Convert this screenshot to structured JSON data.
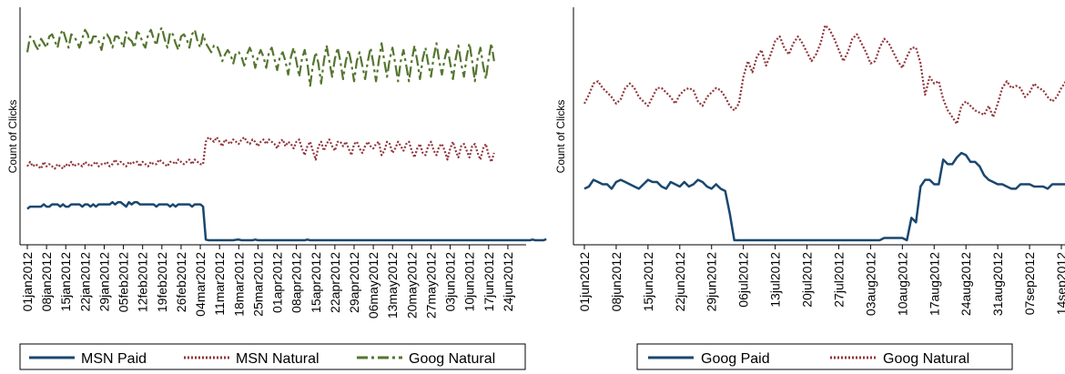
{
  "chart_data": [
    {
      "type": "line",
      "title": "",
      "xlabel": "",
      "ylabel": "Count of Clicks",
      "grid": false,
      "legend": "bottom",
      "x_ticks": [
        "01jan2012",
        "08jan2012",
        "15jan2012",
        "22jan2012",
        "29jan2012",
        "05feb2012",
        "12feb2012",
        "19feb2012",
        "26feb2012",
        "04mar2012",
        "11mar2012",
        "18mar2012",
        "25mar2012",
        "01apr2012",
        "08apr2012",
        "15apr2012",
        "22apr2012",
        "29apr2012",
        "06may2012",
        "13may2012",
        "20may2012",
        "27may2012",
        "03jun2012",
        "10jun2012",
        "17jun2012",
        "24jun2012"
      ],
      "x_start": "01jan2012",
      "x_end": "28jun2012",
      "ylim": [
        0,
        100
      ],
      "series": [
        {
          "name": "MSN Paid",
          "color": "#1a476f",
          "style": "solid",
          "values": [
            14,
            15,
            15,
            15,
            15,
            15,
            16,
            15,
            15,
            16,
            16,
            16,
            15,
            16,
            15,
            15,
            16,
            16,
            16,
            16,
            15,
            16,
            16,
            15,
            16,
            15,
            16,
            16,
            16,
            16,
            16,
            17,
            16,
            17,
            17,
            16,
            15,
            17,
            16,
            17,
            17,
            16,
            16,
            16,
            16,
            16,
            16,
            15,
            16,
            16,
            16,
            16,
            15,
            16,
            15,
            16,
            16,
            16,
            16,
            16,
            15,
            16,
            16,
            16,
            15,
            0.3,
            0,
            0,
            0,
            0,
            0,
            0,
            0,
            0,
            0,
            0,
            0.2,
            0.3,
            0,
            0,
            0,
            0,
            0,
            0.3,
            0,
            0,
            0,
            0,
            0,
            0,
            0,
            0,
            0,
            0,
            0,
            0,
            0,
            0,
            0,
            0,
            0,
            0,
            0.3,
            0,
            0,
            0,
            0,
            0,
            0,
            0,
            0,
            0,
            0,
            0,
            0,
            0,
            0,
            0,
            0,
            0,
            0,
            0,
            0,
            0,
            0,
            0,
            0,
            0,
            0,
            0,
            0,
            0,
            0,
            0,
            0,
            0,
            0,
            0,
            0,
            0,
            0,
            0,
            0,
            0,
            0,
            0,
            0,
            0,
            0,
            0,
            0,
            0,
            0,
            0,
            0,
            0,
            0,
            0,
            0,
            0,
            0,
            0,
            0,
            0,
            0,
            0,
            0,
            0,
            0,
            0,
            0,
            0,
            0,
            0,
            0,
            0,
            0,
            0,
            0,
            0,
            0,
            0,
            0,
            0,
            0.3,
            0,
            0,
            0,
            0,
            0.5
          ]
        },
        {
          "name": "MSN Natural",
          "color": "#90353b",
          "style": "dot",
          "values": [
            33,
            35,
            33,
            34,
            33,
            32,
            35,
            33,
            34,
            33,
            32,
            34,
            33,
            32,
            34,
            33,
            35,
            33,
            34,
            34,
            33,
            35,
            34,
            33,
            34,
            35,
            33,
            34,
            34,
            35,
            33,
            34,
            36,
            34,
            35,
            34,
            33,
            35,
            34,
            35,
            35,
            33,
            35,
            34,
            33,
            35,
            34,
            34,
            36,
            35,
            34,
            33,
            35,
            35,
            34,
            36,
            35,
            34,
            35,
            36,
            34,
            36,
            35,
            34,
            34,
            44,
            46,
            45,
            44,
            46,
            44,
            42,
            45,
            44,
            43,
            45,
            44,
            43,
            45,
            46,
            44,
            43,
            45,
            44,
            42,
            44,
            45,
            43,
            45,
            44,
            43,
            41,
            44,
            45,
            42,
            44,
            43,
            41,
            44,
            45,
            41,
            38,
            42,
            44,
            40,
            36,
            42,
            44,
            40,
            43,
            45,
            42,
            40,
            44,
            44,
            42,
            44,
            41,
            38,
            43,
            44,
            41,
            39,
            42,
            44,
            42,
            41,
            43,
            44,
            38,
            40,
            44,
            43,
            39,
            41,
            44,
            42,
            40,
            43,
            44,
            40,
            37,
            41,
            43,
            39,
            38,
            42,
            44,
            40,
            38,
            42,
            43,
            40,
            36,
            41,
            44,
            40,
            37,
            42,
            43,
            40,
            37,
            42,
            43,
            39,
            36,
            41,
            43,
            38,
            35,
            39
          ]
        },
        {
          "name": "Goog Natural",
          "color": "#55752f",
          "style": "dash",
          "values": [
            84,
            91,
            90,
            87,
            85,
            90,
            88,
            86,
            91,
            92,
            89,
            86,
            92,
            94,
            90,
            86,
            92,
            91,
            89,
            86,
            90,
            94,
            92,
            87,
            91,
            91,
            89,
            85,
            91,
            92,
            90,
            86,
            91,
            91,
            89,
            86,
            93,
            90,
            89,
            86,
            93,
            92,
            88,
            86,
            92,
            94,
            90,
            87,
            93,
            95,
            90,
            86,
            93,
            92,
            88,
            85,
            91,
            92,
            90,
            86,
            92,
            94,
            89,
            86,
            92,
            88,
            86,
            84,
            87,
            87,
            84,
            80,
            83,
            85,
            83,
            79,
            84,
            84,
            82,
            78,
            83,
            86,
            83,
            77,
            82,
            85,
            82,
            77,
            84,
            86,
            81,
            76,
            82,
            84,
            80,
            74,
            82,
            86,
            80,
            73,
            81,
            85,
            79,
            69,
            78,
            84,
            79,
            70,
            80,
            87,
            80,
            73,
            81,
            86,
            80,
            72,
            80,
            85,
            79,
            71,
            80,
            84,
            78,
            72,
            80,
            86,
            79,
            71,
            80,
            88,
            80,
            73,
            81,
            86,
            79,
            71,
            80,
            85,
            78,
            71,
            80,
            87,
            80,
            72,
            81,
            86,
            79,
            73,
            82,
            88,
            80,
            74,
            81,
            86,
            79,
            72,
            81,
            87,
            79,
            73,
            82,
            88,
            80,
            71,
            81,
            86,
            78,
            72,
            81,
            88,
            80
          ]
        }
      ]
    },
    {
      "type": "line",
      "title": "",
      "xlabel": "",
      "ylabel": "Count of Clicks",
      "grid": false,
      "legend": "bottom",
      "x_ticks": [
        "01jun2012",
        "08jun2012",
        "15jun2012",
        "22jun2012",
        "29jun2012",
        "06jul2012",
        "13jul2012",
        "20jul2012",
        "27jul2012",
        "03aug2012",
        "10aug2012",
        "17aug2012",
        "24aug2012",
        "31aug2012",
        "07sep2012",
        "14sep2012"
      ],
      "x_start": "01jun2012",
      "x_end": "14sep2012",
      "ylim": [
        0,
        100
      ],
      "series": [
        {
          "name": "Goog Paid",
          "color": "#1a476f",
          "style": "solid",
          "values": [
            23,
            24,
            27,
            26,
            25,
            25,
            23,
            26,
            27,
            26,
            25,
            24,
            23,
            25,
            27,
            26,
            26,
            24,
            23,
            26,
            25,
            24,
            26,
            24,
            25,
            27,
            26,
            24,
            23,
            25,
            23,
            22,
            12,
            0,
            0,
            0,
            0,
            0,
            0,
            0,
            0,
            0,
            0,
            0,
            0,
            0,
            0,
            0,
            0,
            0,
            0,
            0,
            0,
            0,
            0,
            0,
            0,
            0,
            0,
            0,
            0,
            0,
            0,
            0,
            0,
            0,
            1,
            1,
            1,
            1,
            1,
            0,
            10,
            8,
            24,
            27,
            27,
            25,
            25,
            36,
            34,
            34,
            37,
            39,
            38,
            35,
            35,
            33,
            29,
            27,
            26,
            25,
            25,
            24,
            23,
            23,
            25,
            25,
            25,
            24,
            24,
            24,
            23,
            25,
            25,
            25,
            25,
            26,
            25,
            26,
            27,
            24,
            25,
            26,
            27,
            26,
            26,
            26,
            26,
            26,
            27,
            25
          ]
        },
        {
          "name": "Goog Natural",
          "color": "#90353b",
          "style": "dot",
          "values": [
            61,
            65,
            70,
            71,
            68,
            66,
            64,
            61,
            63,
            68,
            70,
            68,
            64,
            62,
            60,
            64,
            68,
            68,
            66,
            64,
            61,
            65,
            67,
            68,
            67,
            62,
            60,
            64,
            66,
            68,
            67,
            64,
            60,
            58,
            61,
            73,
            80,
            75,
            82,
            85,
            78,
            83,
            89,
            91,
            86,
            83,
            88,
            91,
            88,
            84,
            80,
            83,
            88,
            96,
            94,
            90,
            85,
            80,
            84,
            90,
            92,
            88,
            84,
            79,
            80,
            86,
            90,
            88,
            84,
            80,
            77,
            82,
            86,
            86,
            79,
            65,
            73,
            70,
            71,
            63,
            58,
            55,
            52,
            60,
            62,
            60,
            58,
            57,
            56,
            60,
            55,
            61,
            68,
            71,
            68,
            69,
            68,
            64,
            66,
            70,
            68,
            67,
            64,
            62,
            64,
            68,
            71,
            67,
            66,
            64,
            62,
            64,
            69,
            68,
            66,
            63,
            64,
            68,
            69,
            68,
            67,
            68
          ]
        }
      ]
    }
  ]
}
